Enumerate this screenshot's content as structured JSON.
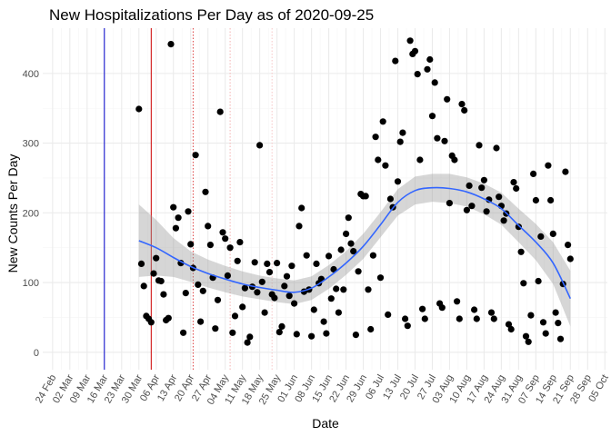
{
  "chart_data": {
    "type": "scatter",
    "title": "New Hospitalizations Per Day as of 2020-09-25",
    "xlabel": "Date",
    "ylabel": "New Counts Per Day",
    "xlim": [
      "2020-02-20",
      "2020-10-06"
    ],
    "ylim": [
      -25,
      465
    ],
    "grid": true,
    "x_ticks": [
      {
        "date": "2020-02-24",
        "label": "24 Feb"
      },
      {
        "date": "2020-03-02",
        "label": "02 Mar"
      },
      {
        "date": "2020-03-09",
        "label": "09 Mar"
      },
      {
        "date": "2020-03-16",
        "label": "16 Mar"
      },
      {
        "date": "2020-03-23",
        "label": "23 Mar"
      },
      {
        "date": "2020-03-30",
        "label": "30 Mar"
      },
      {
        "date": "2020-04-06",
        "label": "06 Apr"
      },
      {
        "date": "2020-04-13",
        "label": "13 Apr"
      },
      {
        "date": "2020-04-20",
        "label": "20 Apr"
      },
      {
        "date": "2020-04-27",
        "label": "27 Apr"
      },
      {
        "date": "2020-05-04",
        "label": "04 May"
      },
      {
        "date": "2020-05-11",
        "label": "11 May"
      },
      {
        "date": "2020-05-18",
        "label": "18 May"
      },
      {
        "date": "2020-05-25",
        "label": "25 May"
      },
      {
        "date": "2020-06-01",
        "label": "01 Jun"
      },
      {
        "date": "2020-06-08",
        "label": "08 Jun"
      },
      {
        "date": "2020-06-15",
        "label": "15 Jun"
      },
      {
        "date": "2020-06-22",
        "label": "22 Jun"
      },
      {
        "date": "2020-06-29",
        "label": "29 Jun"
      },
      {
        "date": "2020-07-06",
        "label": "06 Jul"
      },
      {
        "date": "2020-07-13",
        "label": "13 Jul"
      },
      {
        "date": "2020-07-20",
        "label": "20 Jul"
      },
      {
        "date": "2020-07-27",
        "label": "27 Jul"
      },
      {
        "date": "2020-08-03",
        "label": "03 Aug"
      },
      {
        "date": "2020-08-10",
        "label": "10 Aug"
      },
      {
        "date": "2020-08-17",
        "label": "17 Aug"
      },
      {
        "date": "2020-08-24",
        "label": "24 Aug"
      },
      {
        "date": "2020-08-31",
        "label": "31 Aug"
      },
      {
        "date": "2020-09-07",
        "label": "07 Sep"
      },
      {
        "date": "2020-09-14",
        "label": "14 Sep"
      },
      {
        "date": "2020-09-21",
        "label": "21 Sep"
      },
      {
        "date": "2020-09-28",
        "label": "28 Sep"
      },
      {
        "date": "2020-10-05",
        "label": "05 Oct"
      }
    ],
    "y_ticks": [
      0,
      100,
      200,
      300,
      400
    ],
    "vlines": [
      {
        "date": "2020-03-16",
        "color": "#0000cc",
        "style": "solid"
      },
      {
        "date": "2020-04-04",
        "color": "#cc0000",
        "style": "solid"
      },
      {
        "date": "2020-04-21",
        "color": "#dd4444",
        "style": "dotted"
      },
      {
        "date": "2020-05-06",
        "color": "#f3b0b0",
        "style": "dotted"
      },
      {
        "date": "2020-05-23",
        "color": "#f6c8c8",
        "style": "dotted"
      }
    ],
    "points": [
      [
        "2020-03-30",
        349
      ],
      [
        "2020-03-31",
        127
      ],
      [
        "2020-04-01",
        95
      ],
      [
        "2020-04-02",
        52
      ],
      [
        "2020-04-03",
        48
      ],
      [
        "2020-04-04",
        43
      ],
      [
        "2020-04-05",
        113
      ],
      [
        "2020-04-06",
        135
      ],
      [
        "2020-04-07",
        103
      ],
      [
        "2020-04-08",
        102
      ],
      [
        "2020-04-09",
        83
      ],
      [
        "2020-04-10",
        46
      ],
      [
        "2020-04-11",
        49
      ],
      [
        "2020-04-12",
        442
      ],
      [
        "2020-04-13",
        208
      ],
      [
        "2020-04-14",
        178
      ],
      [
        "2020-04-15",
        193
      ],
      [
        "2020-04-16",
        128
      ],
      [
        "2020-04-17",
        28
      ],
      [
        "2020-04-18",
        85
      ],
      [
        "2020-04-19",
        202
      ],
      [
        "2020-04-20",
        155
      ],
      [
        "2020-04-21",
        121
      ],
      [
        "2020-04-22",
        283
      ],
      [
        "2020-04-23",
        97
      ],
      [
        "2020-04-24",
        44
      ],
      [
        "2020-04-25",
        88
      ],
      [
        "2020-04-26",
        230
      ],
      [
        "2020-04-27",
        181
      ],
      [
        "2020-04-28",
        154
      ],
      [
        "2020-04-29",
        107
      ],
      [
        "2020-04-30",
        34
      ],
      [
        "2020-05-01",
        75
      ],
      [
        "2020-05-02",
        345
      ],
      [
        "2020-05-03",
        172
      ],
      [
        "2020-05-04",
        163
      ],
      [
        "2020-05-05",
        110
      ],
      [
        "2020-05-06",
        150
      ],
      [
        "2020-05-07",
        28
      ],
      [
        "2020-05-08",
        52
      ],
      [
        "2020-05-09",
        131
      ],
      [
        "2020-05-10",
        158
      ],
      [
        "2020-05-11",
        65
      ],
      [
        "2020-05-12",
        92
      ],
      [
        "2020-05-13",
        14
      ],
      [
        "2020-05-14",
        22
      ],
      [
        "2020-05-15",
        94
      ],
      [
        "2020-05-16",
        129
      ],
      [
        "2020-05-17",
        86
      ],
      [
        "2020-05-18",
        297
      ],
      [
        "2020-05-19",
        101
      ],
      [
        "2020-05-20",
        57
      ],
      [
        "2020-05-21",
        127
      ],
      [
        "2020-05-22",
        115
      ],
      [
        "2020-05-23",
        83
      ],
      [
        "2020-05-24",
        78
      ],
      [
        "2020-05-25",
        128
      ],
      [
        "2020-05-26",
        29
      ],
      [
        "2020-05-27",
        37
      ],
      [
        "2020-05-28",
        95
      ],
      [
        "2020-05-29",
        109
      ],
      [
        "2020-05-30",
        81
      ],
      [
        "2020-05-31",
        124
      ],
      [
        "2020-06-01",
        70
      ],
      [
        "2020-06-02",
        26
      ],
      [
        "2020-06-03",
        181
      ],
      [
        "2020-06-04",
        207
      ],
      [
        "2020-06-05",
        87
      ],
      [
        "2020-06-06",
        139
      ],
      [
        "2020-06-07",
        90
      ],
      [
        "2020-06-08",
        23
      ],
      [
        "2020-06-09",
        61
      ],
      [
        "2020-06-10",
        127
      ],
      [
        "2020-06-11",
        99
      ],
      [
        "2020-06-12",
        105
      ],
      [
        "2020-06-13",
        44
      ],
      [
        "2020-06-14",
        27
      ],
      [
        "2020-06-15",
        138
      ],
      [
        "2020-06-16",
        77
      ],
      [
        "2020-06-17",
        119
      ],
      [
        "2020-06-18",
        91
      ],
      [
        "2020-06-19",
        57
      ],
      [
        "2020-06-20",
        147
      ],
      [
        "2020-06-21",
        90
      ],
      [
        "2020-06-22",
        170
      ],
      [
        "2020-06-23",
        193
      ],
      [
        "2020-06-24",
        156
      ],
      [
        "2020-06-25",
        145
      ],
      [
        "2020-06-26",
        25
      ],
      [
        "2020-06-27",
        116
      ],
      [
        "2020-06-28",
        227
      ],
      [
        "2020-06-29",
        224
      ],
      [
        "2020-06-30",
        224
      ],
      [
        "2020-07-01",
        90
      ],
      [
        "2020-07-02",
        33
      ],
      [
        "2020-07-03",
        139
      ],
      [
        "2020-07-04",
        309
      ],
      [
        "2020-07-05",
        276
      ],
      [
        "2020-07-06",
        107
      ],
      [
        "2020-07-07",
        331
      ],
      [
        "2020-07-08",
        268
      ],
      [
        "2020-07-09",
        54
      ],
      [
        "2020-07-10",
        220
      ],
      [
        "2020-07-11",
        208
      ],
      [
        "2020-07-12",
        418
      ],
      [
        "2020-07-13",
        245
      ],
      [
        "2020-07-14",
        302
      ],
      [
        "2020-07-15",
        315
      ],
      [
        "2020-07-16",
        48
      ],
      [
        "2020-07-17",
        38
      ],
      [
        "2020-07-18",
        447
      ],
      [
        "2020-07-19",
        428
      ],
      [
        "2020-07-20",
        432
      ],
      [
        "2020-07-21",
        399
      ],
      [
        "2020-07-22",
        276
      ],
      [
        "2020-07-23",
        62
      ],
      [
        "2020-07-24",
        48
      ],
      [
        "2020-07-25",
        406
      ],
      [
        "2020-07-26",
        420
      ],
      [
        "2020-07-27",
        339
      ],
      [
        "2020-07-28",
        387
      ],
      [
        "2020-07-29",
        307
      ],
      [
        "2020-07-30",
        70
      ],
      [
        "2020-07-31",
        64
      ],
      [
        "2020-08-01",
        303
      ],
      [
        "2020-08-02",
        363
      ],
      [
        "2020-08-03",
        214
      ],
      [
        "2020-08-04",
        282
      ],
      [
        "2020-08-05",
        276
      ],
      [
        "2020-08-06",
        73
      ],
      [
        "2020-08-07",
        48
      ],
      [
        "2020-08-08",
        356
      ],
      [
        "2020-08-09",
        347
      ],
      [
        "2020-08-10",
        204
      ],
      [
        "2020-08-11",
        239
      ],
      [
        "2020-08-12",
        210
      ],
      [
        "2020-08-13",
        61
      ],
      [
        "2020-08-14",
        48
      ],
      [
        "2020-08-15",
        297
      ],
      [
        "2020-08-16",
        236
      ],
      [
        "2020-08-17",
        247
      ],
      [
        "2020-08-18",
        202
      ],
      [
        "2020-08-19",
        219
      ],
      [
        "2020-08-20",
        57
      ],
      [
        "2020-08-21",
        48
      ],
      [
        "2020-08-22",
        293
      ],
      [
        "2020-08-23",
        223
      ],
      [
        "2020-08-24",
        210
      ],
      [
        "2020-08-25",
        189
      ],
      [
        "2020-08-26",
        199
      ],
      [
        "2020-08-27",
        40
      ],
      [
        "2020-08-28",
        33
      ],
      [
        "2020-08-29",
        244
      ],
      [
        "2020-08-30",
        235
      ],
      [
        "2020-08-31",
        180
      ],
      [
        "2020-09-01",
        144
      ],
      [
        "2020-09-02",
        99
      ],
      [
        "2020-09-03",
        23
      ],
      [
        "2020-09-04",
        15
      ],
      [
        "2020-09-05",
        53
      ],
      [
        "2020-09-06",
        256
      ],
      [
        "2020-09-07",
        218
      ],
      [
        "2020-09-08",
        102
      ],
      [
        "2020-09-09",
        166
      ],
      [
        "2020-09-10",
        43
      ],
      [
        "2020-09-11",
        27
      ],
      [
        "2020-09-12",
        268
      ],
      [
        "2020-09-13",
        218
      ],
      [
        "2020-09-14",
        170
      ],
      [
        "2020-09-15",
        57
      ],
      [
        "2020-09-16",
        42
      ],
      [
        "2020-09-17",
        19
      ],
      [
        "2020-09-18",
        98
      ],
      [
        "2020-09-19",
        259
      ],
      [
        "2020-09-20",
        154
      ],
      [
        "2020-09-21",
        134
      ]
    ],
    "trend": [
      [
        "2020-03-30",
        160
      ],
      [
        "2020-04-06",
        150
      ],
      [
        "2020-04-13",
        136
      ],
      [
        "2020-04-20",
        123
      ],
      [
        "2020-04-27",
        113
      ],
      [
        "2020-05-04",
        105
      ],
      [
        "2020-05-11",
        98
      ],
      [
        "2020-05-18",
        93
      ],
      [
        "2020-05-25",
        89
      ],
      [
        "2020-06-01",
        86
      ],
      [
        "2020-06-08",
        92
      ],
      [
        "2020-06-15",
        108
      ],
      [
        "2020-06-22",
        128
      ],
      [
        "2020-06-29",
        152
      ],
      [
        "2020-07-06",
        183
      ],
      [
        "2020-07-13",
        215
      ],
      [
        "2020-07-20",
        232
      ],
      [
        "2020-07-27",
        236
      ],
      [
        "2020-08-03",
        235
      ],
      [
        "2020-08-10",
        230
      ],
      [
        "2020-08-17",
        220
      ],
      [
        "2020-08-24",
        206
      ],
      [
        "2020-08-31",
        182
      ],
      [
        "2020-09-07",
        158
      ],
      [
        "2020-09-14",
        128
      ],
      [
        "2020-09-21",
        77
      ]
    ],
    "band_halfwidth": [
      52,
      40,
      28,
      22,
      20,
      19,
      18,
      17,
      17,
      17,
      17,
      17,
      17,
      18,
      18,
      19,
      20,
      20,
      21,
      21,
      22,
      23,
      24,
      26,
      30,
      40
    ],
    "colors": {
      "point": "#000000",
      "trend": "#3366ff",
      "band": "#999999",
      "grid_major": "#ebebeb",
      "grid_minor": "#f5f5f5"
    }
  }
}
